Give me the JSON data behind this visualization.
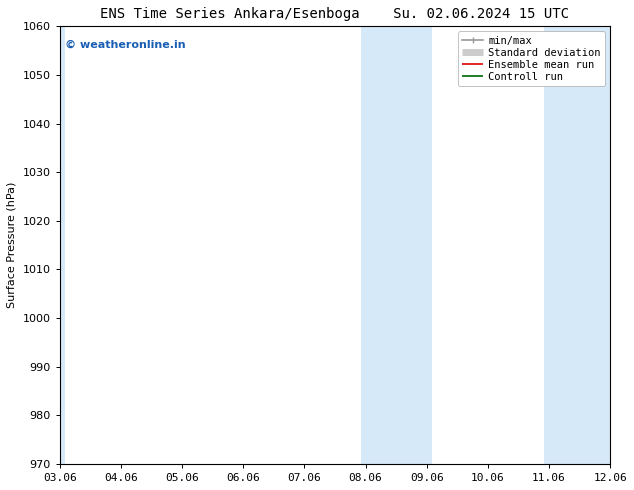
{
  "title": "ENS Time Series Ankara/Esenboga    Su. 02.06.2024 15 UTC",
  "title_left": "ENS Time Series Ankara/Esenboga",
  "title_right": "Su. 02.06.2024 15 UTC",
  "ylabel": "Surface Pressure (hPa)",
  "ylim": [
    970,
    1060
  ],
  "yticks": [
    970,
    980,
    990,
    1000,
    1010,
    1020,
    1030,
    1040,
    1050,
    1060
  ],
  "xtick_labels": [
    "03.06",
    "04.06",
    "05.06",
    "06.06",
    "07.06",
    "08.06",
    "09.06",
    "10.06",
    "11.06",
    "12.06"
  ],
  "xtick_positions": [
    0,
    1,
    2,
    3,
    4,
    5,
    6,
    7,
    8,
    9
  ],
  "xlim": [
    0,
    9
  ],
  "shaded_bands": [
    {
      "xmin": -0.08,
      "xmax": 0.08,
      "color": "#d6e9f8"
    },
    {
      "xmin": 4.92,
      "xmax": 6.08,
      "color": "#d6e9f8"
    },
    {
      "xmin": 7.92,
      "xmax": 9.08,
      "color": "#d6e9f8"
    }
  ],
  "watermark": "© weatheronline.in",
  "watermark_color": "#1a5fb4",
  "background_color": "#ffffff",
  "legend_entries": [
    {
      "label": "min/max",
      "color": "#999999",
      "linewidth": 1.2
    },
    {
      "label": "Standard deviation",
      "color": "#cccccc",
      "linewidth": 5
    },
    {
      "label": "Ensemble mean run",
      "color": "#dd0000",
      "linewidth": 1.2
    },
    {
      "label": "Controll run",
      "color": "#006600",
      "linewidth": 1.2
    }
  ],
  "title_fontsize": 10,
  "axis_label_fontsize": 8,
  "tick_fontsize": 8,
  "legend_fontsize": 7.5,
  "watermark_fontsize": 8
}
